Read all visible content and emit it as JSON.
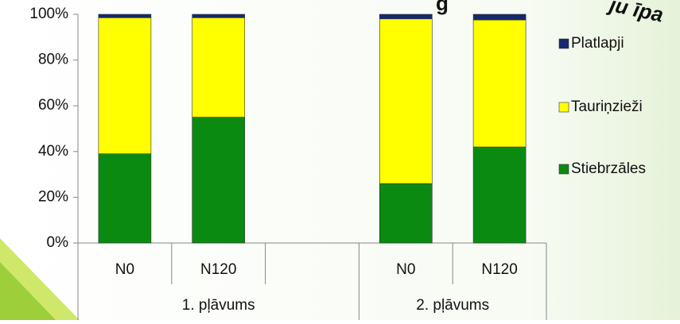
{
  "chart_data": {
    "type": "stacked_bar_100",
    "title": "g",
    "annotation": "ju īpa",
    "categories": [
      "N0",
      "N120",
      null,
      "N0",
      "N120"
    ],
    "groups": [
      {
        "label": "1. pļāvums",
        "span": 3
      },
      {
        "label": "2. pļāvums",
        "span": 2
      }
    ],
    "series": [
      {
        "name": "Stiebrzāles",
        "color": "#0b8a12",
        "values": [
          39,
          55,
          null,
          26,
          42
        ]
      },
      {
        "name": "Tauriņzieži",
        "color": "#ffff00",
        "values": [
          59.5,
          43.5,
          null,
          72,
          55.5
        ]
      },
      {
        "name": "Platlapji",
        "color": "#14286e",
        "values": [
          1.5,
          1.5,
          null,
          2,
          2.5
        ]
      }
    ],
    "ylim": [
      0,
      100
    ],
    "yticks": [
      {
        "value": 0,
        "label": "0%"
      },
      {
        "value": 20,
        "label": "20%"
      },
      {
        "value": 40,
        "label": "40%"
      },
      {
        "value": 60,
        "label": "60%"
      },
      {
        "value": 80,
        "label": "80%"
      },
      {
        "value": 100,
        "label": "100%"
      }
    ],
    "legend": "right"
  }
}
